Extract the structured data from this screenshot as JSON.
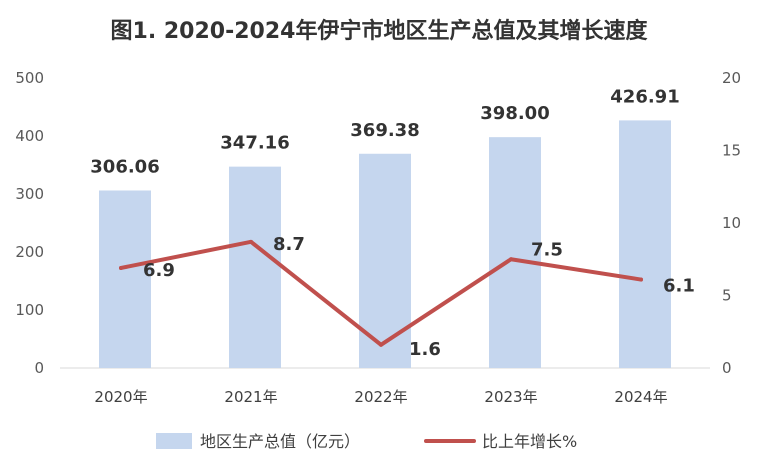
{
  "chart_data": {
    "type": "bar",
    "title": "图1. 2020-2024年伊宁市地区生产总值及其增长速度",
    "categories": [
      "2020年",
      "2021年",
      "2022年",
      "2023年",
      "2024年"
    ],
    "series": [
      {
        "name": "地区生产总值（亿元）",
        "type": "bar",
        "axis": "left",
        "values": [
          306.06,
          347.16,
          369.38,
          398.0,
          426.91
        ],
        "labels": [
          "306.06",
          "347.16",
          "369.38",
          "398.00",
          "426.91"
        ],
        "color": "#c5d6ee"
      },
      {
        "name": "比上年增长%",
        "type": "line",
        "axis": "right",
        "values": [
          6.9,
          8.7,
          1.6,
          7.5,
          6.1
        ],
        "labels": [
          "6.9",
          "8.7",
          "1.6",
          "7.5",
          "6.1"
        ],
        "color": "#c0504d"
      }
    ],
    "y_left": {
      "min": 0,
      "max": 500,
      "ticks": [
        "0",
        "100",
        "200",
        "300",
        "400",
        "500"
      ],
      "tick_values": [
        0,
        100,
        200,
        300,
        400,
        500
      ]
    },
    "y_right": {
      "min": 0,
      "max": 20,
      "ticks": [
        "0",
        "5",
        "10",
        "15",
        "20"
      ],
      "tick_values": [
        0,
        5,
        10,
        15,
        20
      ]
    },
    "grid": false,
    "legend": "bottom"
  }
}
